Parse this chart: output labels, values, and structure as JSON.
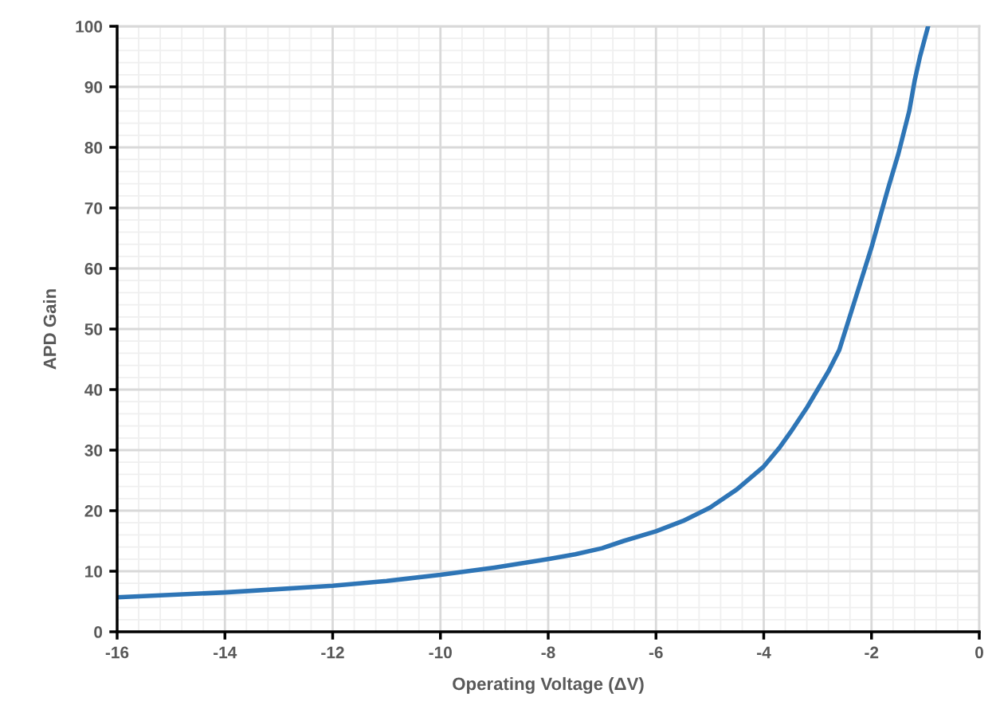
{
  "chart_data": {
    "type": "line",
    "xlabel": "Operating Voltage (ΔV)",
    "ylabel": "APD Gain",
    "x": [
      -16,
      -14,
      -12,
      -11,
      -10,
      -9,
      -8,
      -7.5,
      -7,
      -6.6,
      -6,
      -5.5,
      -5,
      -4.5,
      -4,
      -3.7,
      -3.5,
      -3.2,
      -3,
      -2.8,
      -2.6,
      -2.3,
      -2,
      -1.7,
      -1.5,
      -1.3,
      -1.2,
      -1.1,
      -0.95
    ],
    "series": [
      {
        "color": "#2e75b6",
        "values": [
          5.7,
          6.5,
          7.6,
          8.4,
          9.4,
          10.6,
          12,
          12.8,
          13.8,
          15,
          16.6,
          18.3,
          20.5,
          23.5,
          27.3,
          30.5,
          33,
          37,
          40,
          43,
          46.5,
          55,
          63.5,
          73,
          79,
          86,
          91,
          95,
          100
        ]
      }
    ],
    "xlim": [
      -16,
      0
    ],
    "xticks": [
      -16,
      -14,
      -12,
      -10,
      -8,
      -6,
      -4,
      -2,
      0
    ],
    "ylim": [
      0,
      100
    ],
    "yticks": [
      0,
      10,
      20,
      30,
      40,
      50,
      60,
      70,
      80,
      90,
      100
    ],
    "grid": true,
    "marker": "none",
    "line_style": "solid"
  }
}
